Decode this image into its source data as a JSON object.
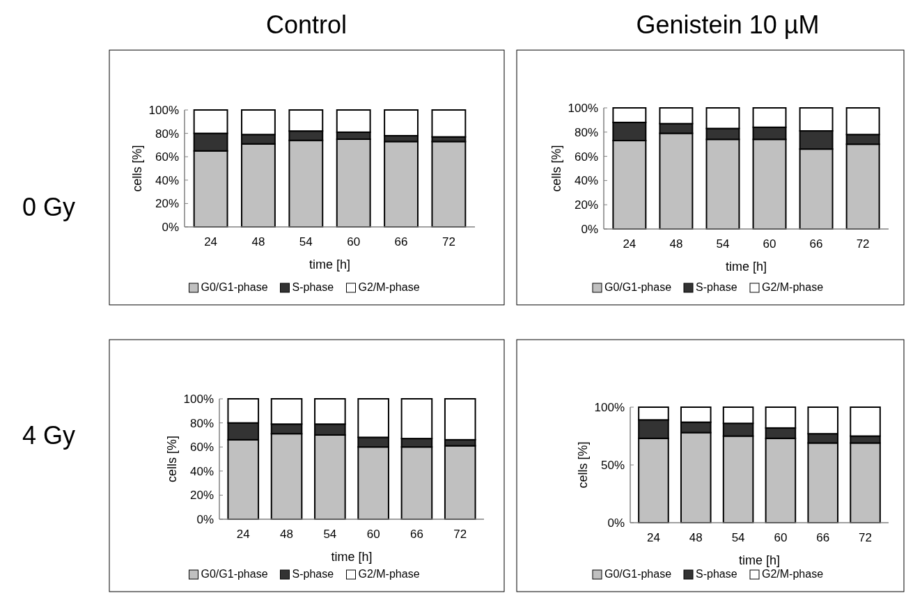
{
  "chart_data": [
    {
      "type": "bar",
      "title": "Control",
      "annotations": [
        "0 Gy"
      ],
      "xlabel": "time [h]",
      "ylabel": "cells [%]",
      "categories": [
        "24",
        "48",
        "54",
        "60",
        "66",
        "72"
      ],
      "stacked": true,
      "legend": "bottom",
      "ylim": [
        0,
        100
      ],
      "yticks": [
        {
          "value": 0,
          "label": "0%"
        },
        {
          "value": 20,
          "label": "20%"
        },
        {
          "value": 40,
          "label": "40%"
        },
        {
          "value": 60,
          "label": "60%"
        },
        {
          "value": 80,
          "label": "80%"
        },
        {
          "value": 100,
          "label": "100%"
        }
      ],
      "series": [
        {
          "name": "G0/G1-phase",
          "color": "#c0c0c0",
          "values": [
            65,
            71,
            74,
            75,
            73,
            73
          ]
        },
        {
          "name": "S-phase",
          "color": "#333333",
          "values": [
            15,
            8,
            8,
            6,
            5,
            4
          ]
        },
        {
          "name": "G2/M-phase",
          "color": "#ffffff",
          "values": [
            20,
            21,
            18,
            19,
            22,
            23
          ]
        }
      ]
    },
    {
      "type": "bar",
      "title": "Genistein 10 µM",
      "xlabel": "time [h]",
      "ylabel": "cells [%]",
      "categories": [
        "24",
        "48",
        "54",
        "60",
        "66",
        "72"
      ],
      "stacked": true,
      "legend": "bottom",
      "ylim": [
        0,
        100
      ],
      "yticks": [
        {
          "value": 0,
          "label": "0%"
        },
        {
          "value": 20,
          "label": "20%"
        },
        {
          "value": 40,
          "label": "40%"
        },
        {
          "value": 60,
          "label": "60%"
        },
        {
          "value": 80,
          "label": "80%"
        },
        {
          "value": 100,
          "label": "100%"
        }
      ],
      "series": [
        {
          "name": "G0/G1-phase",
          "color": "#c0c0c0",
          "values": [
            73,
            79,
            74,
            74,
            66,
            70
          ]
        },
        {
          "name": "S-phase",
          "color": "#333333",
          "values": [
            15,
            8,
            9,
            10,
            15,
            8
          ]
        },
        {
          "name": "G2/M-phase",
          "color": "#ffffff",
          "values": [
            12,
            13,
            17,
            16,
            19,
            22
          ]
        }
      ]
    },
    {
      "type": "bar",
      "annotations": [
        "4 Gy"
      ],
      "xlabel": "time [h]",
      "ylabel": "cells [%]",
      "categories": [
        "24",
        "48",
        "54",
        "60",
        "66",
        "72"
      ],
      "stacked": true,
      "legend": "bottom",
      "ylim": [
        0,
        100
      ],
      "yticks": [
        {
          "value": 0,
          "label": "0%"
        },
        {
          "value": 20,
          "label": "20%"
        },
        {
          "value": 40,
          "label": "40%"
        },
        {
          "value": 60,
          "label": "60%"
        },
        {
          "value": 80,
          "label": "80%"
        },
        {
          "value": 100,
          "label": "100%"
        }
      ],
      "series": [
        {
          "name": "G0/G1-phase",
          "color": "#c0c0c0",
          "values": [
            66,
            71,
            70,
            60,
            60,
            61
          ]
        },
        {
          "name": "S-phase",
          "color": "#333333",
          "values": [
            14,
            8,
            9,
            8,
            7,
            5
          ]
        },
        {
          "name": "G2/M-phase",
          "color": "#ffffff",
          "values": [
            20,
            21,
            21,
            32,
            33,
            34
          ]
        }
      ]
    },
    {
      "type": "bar",
      "xlabel": "time [h]",
      "ylabel": "cells [%]",
      "categories": [
        "24",
        "48",
        "54",
        "60",
        "66",
        "72"
      ],
      "stacked": true,
      "legend": "bottom",
      "ylim": [
        0,
        100
      ],
      "yticks": [
        {
          "value": 0,
          "label": "0%"
        },
        {
          "value": 50,
          "label": "50%"
        },
        {
          "value": 100,
          "label": "100%"
        }
      ],
      "series": [
        {
          "name": "G0/G1-phase",
          "color": "#c0c0c0",
          "values": [
            73,
            78,
            75,
            73,
            69,
            69
          ]
        },
        {
          "name": "S-phase",
          "color": "#333333",
          "values": [
            16,
            9,
            11,
            9,
            8,
            6
          ]
        },
        {
          "name": "G2/M-phase",
          "color": "#ffffff",
          "values": [
            11,
            13,
            14,
            18,
            23,
            25
          ]
        }
      ]
    }
  ]
}
